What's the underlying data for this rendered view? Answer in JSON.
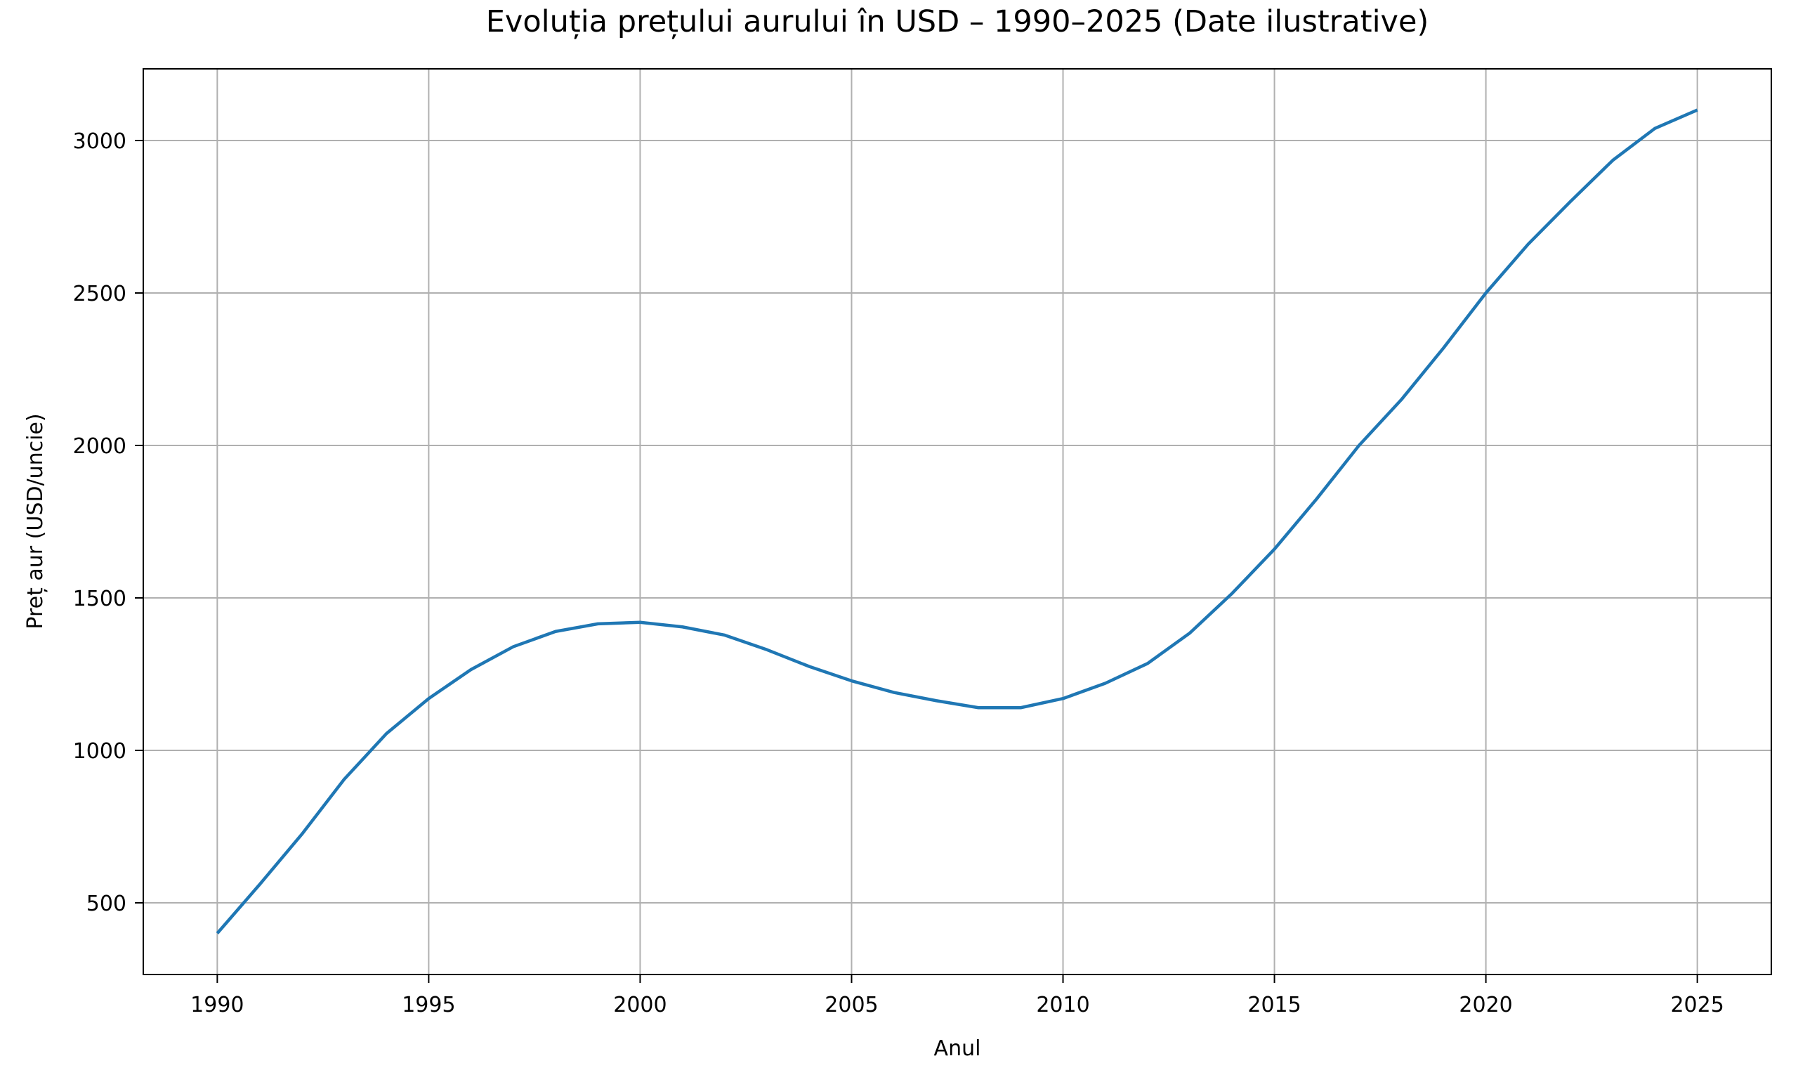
{
  "chart_data": {
    "type": "line",
    "title": "Evoluția prețului aurului în USD – 1990–2025 (Date ilustrative)",
    "xlabel": "Anul",
    "ylabel": "Preț aur (USD/uncie)",
    "x": [
      1990,
      1991,
      1992,
      1993,
      1994,
      1995,
      1996,
      1997,
      1998,
      1999,
      2000,
      2001,
      2002,
      2003,
      2004,
      2005,
      2006,
      2007,
      2008,
      2009,
      2010,
      2011,
      2012,
      2013,
      2014,
      2015,
      2016,
      2017,
      2018,
      2019,
      2020,
      2021,
      2022,
      2023,
      2024,
      2025
    ],
    "values": [
      400,
      560,
      725,
      905,
      1055,
      1170,
      1265,
      1340,
      1390,
      1415,
      1420,
      1405,
      1378,
      1330,
      1275,
      1228,
      1190,
      1163,
      1140,
      1140,
      1170,
      1220,
      1285,
      1385,
      1515,
      1660,
      1825,
      2000,
      2150,
      2320,
      2500,
      2660,
      2800,
      2935,
      3040,
      3100
    ],
    "xticks": [
      1990,
      1995,
      2000,
      2005,
      2010,
      2015,
      2020,
      2025
    ],
    "yticks": [
      500,
      1000,
      1500,
      2000,
      2500,
      3000
    ],
    "xlim": [
      1988.25,
      2026.75
    ],
    "ylim": [
      265,
      3235
    ],
    "grid": true,
    "legend_position": "none",
    "colors": {
      "line": "#1f77b4",
      "grid": "#b0b0b0",
      "spine": "#000000",
      "text": "#000000",
      "background": "#ffffff"
    }
  }
}
